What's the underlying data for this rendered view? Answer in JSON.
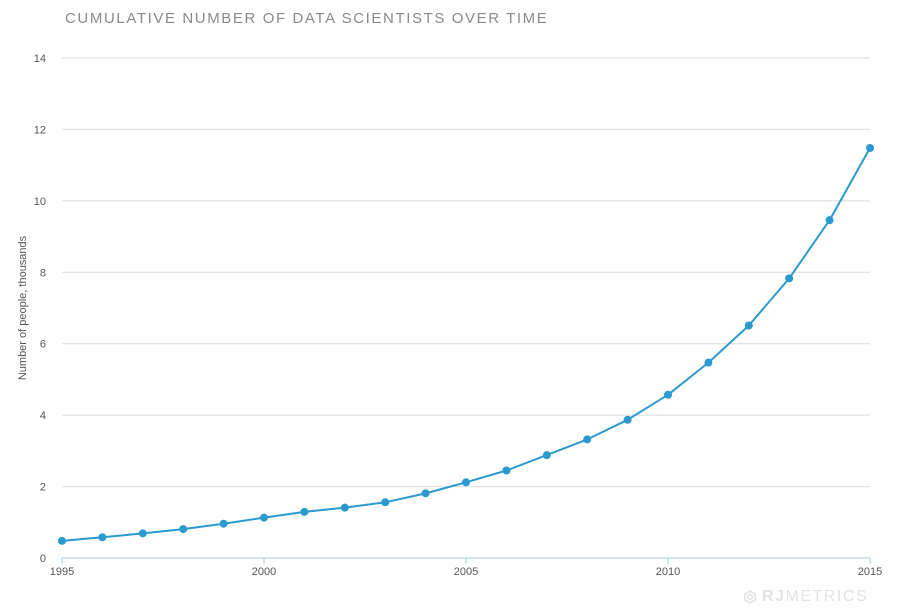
{
  "title": "CUMULATIVE NUMBER OF DATA SCIENTISTS OVER TIME",
  "watermark": {
    "bold": "RJ",
    "regular": "METRICS",
    "logo_icon": "rjmetrics-logo-icon"
  },
  "colors": {
    "series": "#2b9ace",
    "grid": "#dcdcdc",
    "axis_baseline": "#a9cfe0",
    "tick_text": "#555555",
    "title": "#8a8a8a"
  },
  "chart_data": {
    "type": "line",
    "title": "CUMULATIVE NUMBER OF DATA SCIENTISTS OVER TIME",
    "xlabel": "",
    "ylabel": "Number of people, thousands",
    "x": [
      1995,
      1996,
      1997,
      1998,
      1999,
      2000,
      2001,
      2002,
      2003,
      2004,
      2005,
      2006,
      2007,
      2008,
      2009,
      2010,
      2011,
      2012,
      2013,
      2014,
      2015
    ],
    "series": [
      {
        "values": [
          0.48,
          0.58,
          0.69,
          0.81,
          0.96,
          1.13,
          1.29,
          1.41,
          1.56,
          1.81,
          2.12,
          2.45,
          2.88,
          3.32,
          3.87,
          4.57,
          5.47,
          6.51,
          7.83,
          9.46,
          11.48
        ]
      }
    ],
    "xlim": [
      1995,
      2015
    ],
    "ylim": [
      0,
      14
    ],
    "xticks": [
      1995,
      2000,
      2005,
      2010,
      2015
    ],
    "yticks": [
      0,
      2,
      4,
      6,
      8,
      10,
      12,
      14
    ],
    "grid": "horizontal",
    "markers": true
  }
}
